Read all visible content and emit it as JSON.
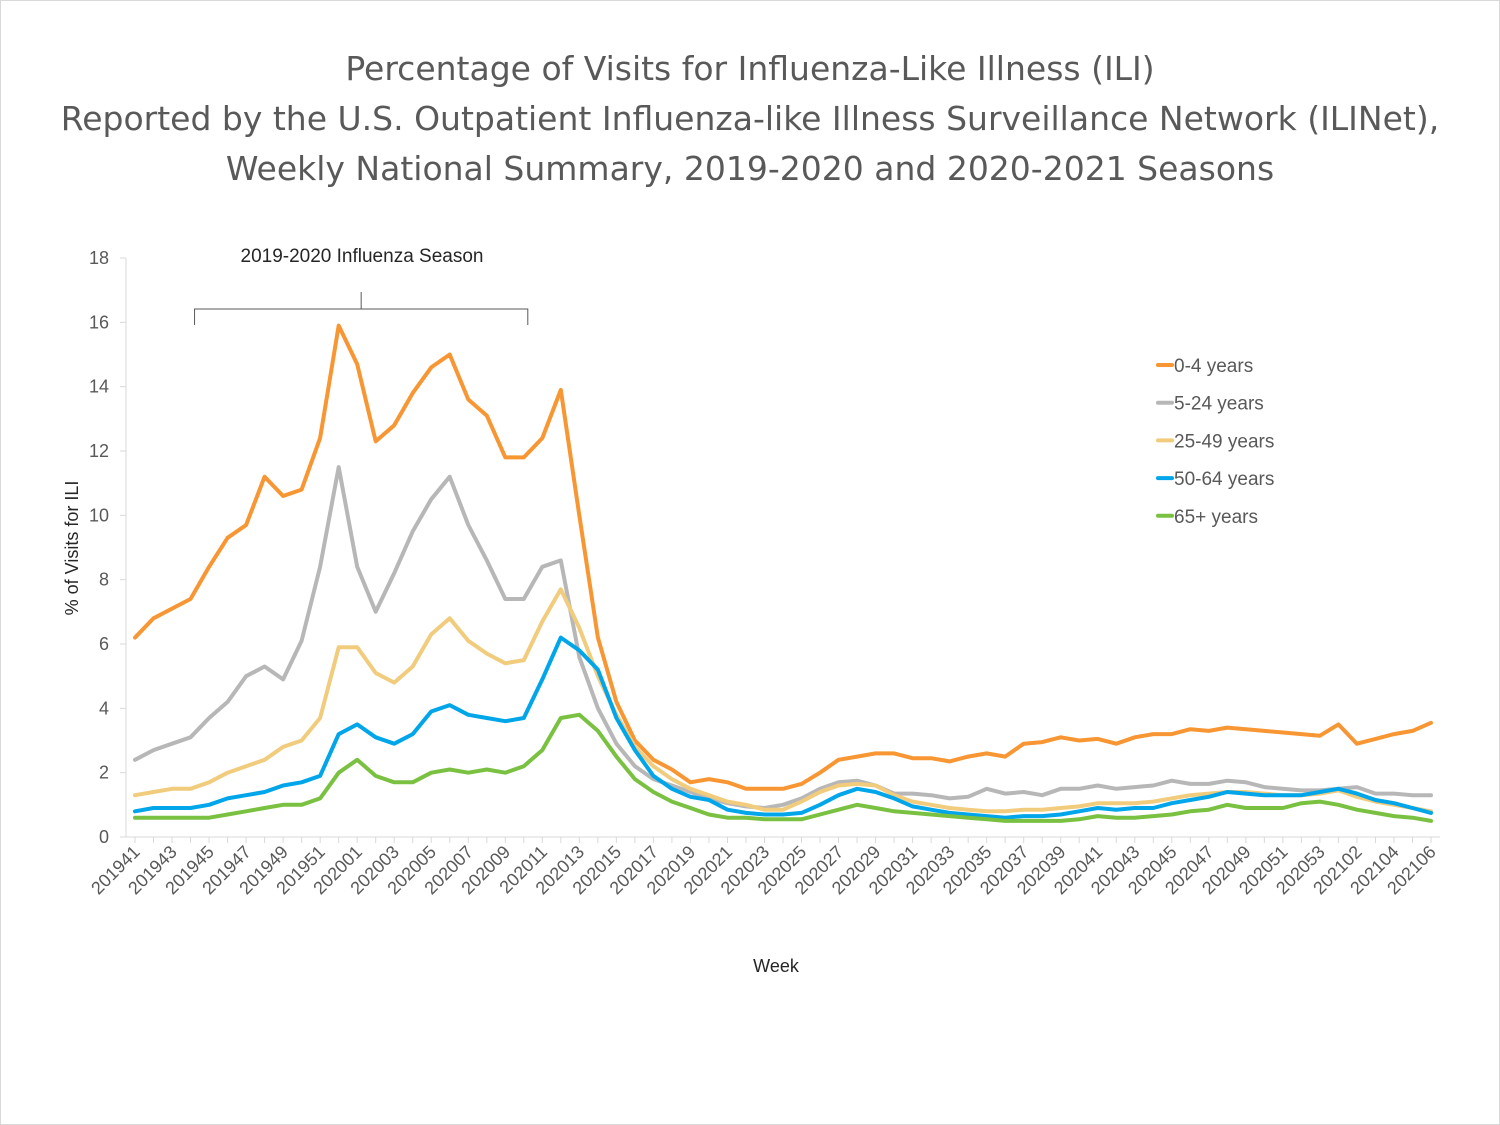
{
  "chart_data": {
    "type": "line",
    "title": [
      "Percentage of Visits for Influenza-Like Illness (ILI)",
      "Reported by the U.S. Outpatient Influenza-like Illness Surveillance Network (ILINet),",
      "Weekly National Summary, 2019-2020 and 2020-2021 Seasons"
    ],
    "xlabel": "Week",
    "ylabel": "% of Visits for ILI",
    "ylim": [
      0,
      18
    ],
    "yticks": [
      "0",
      "2",
      "4",
      "6",
      "8",
      "10",
      "12",
      "14",
      "16",
      "18"
    ],
    "x_tick_labels": [
      "201941",
      "201943",
      "201945",
      "201947",
      "201949",
      "201951",
      "202001",
      "202003",
      "202005",
      "202007",
      "202009",
      "202011",
      "202013",
      "202015",
      "202017",
      "202019",
      "202021",
      "202023",
      "202025",
      "202027",
      "202029",
      "202031",
      "202033",
      "202035",
      "202037",
      "202039",
      "202041",
      "202043",
      "202045",
      "202047",
      "202049",
      "202051",
      "202053",
      "202102",
      "202104",
      "202106"
    ],
    "x": [
      "201941",
      "201942",
      "201943",
      "201944",
      "201945",
      "201946",
      "201947",
      "201948",
      "201949",
      "201950",
      "201951",
      "201952",
      "202001",
      "202002",
      "202003",
      "202004",
      "202005",
      "202006",
      "202007",
      "202008",
      "202009",
      "202010",
      "202011",
      "202012",
      "202013",
      "202014",
      "202015",
      "202016",
      "202017",
      "202018",
      "202019",
      "202020",
      "202021",
      "202022",
      "202023",
      "202024",
      "202025",
      "202026",
      "202027",
      "202028",
      "202029",
      "202030",
      "202031",
      "202032",
      "202033",
      "202034",
      "202035",
      "202036",
      "202037",
      "202038",
      "202039",
      "202040",
      "202041",
      "202042",
      "202043",
      "202044",
      "202045",
      "202046",
      "202047",
      "202048",
      "202049",
      "202050",
      "202051",
      "202052",
      "202053",
      "202101",
      "202102",
      "202103",
      "202104",
      "202105",
      "202106"
    ],
    "annotation": "2019-2020 Influenza Season",
    "legend_position": "right",
    "series": [
      {
        "name": "0-4 years",
        "color": "#f79633",
        "values": [
          6.2,
          6.8,
          7.1,
          7.4,
          8.4,
          9.3,
          9.7,
          11.2,
          10.6,
          10.8,
          12.4,
          15.9,
          14.7,
          12.3,
          12.8,
          13.8,
          14.6,
          15.0,
          13.6,
          13.1,
          11.8,
          11.8,
          12.4,
          13.9,
          10.0,
          6.2,
          4.2,
          3.0,
          2.4,
          2.1,
          1.7,
          1.8,
          1.7,
          1.5,
          1.5,
          1.5,
          1.65,
          2.0,
          2.4,
          2.5,
          2.6,
          2.6,
          2.45,
          2.45,
          2.35,
          2.5,
          2.6,
          2.5,
          2.9,
          2.95,
          3.1,
          3.0,
          3.05,
          2.9,
          3.1,
          3.2,
          3.2,
          3.35,
          3.3,
          3.4,
          3.35,
          3.3,
          3.25,
          3.2,
          3.15,
          3.5,
          2.9,
          3.05,
          3.2,
          3.3,
          3.55
        ]
      },
      {
        "name": "5-24 years",
        "color": "#b7b7b7",
        "values": [
          2.4,
          2.7,
          2.9,
          3.1,
          3.7,
          4.2,
          5.0,
          5.3,
          4.9,
          6.1,
          8.4,
          11.5,
          8.4,
          7.0,
          8.2,
          9.5,
          10.5,
          11.2,
          9.7,
          8.6,
          7.4,
          7.4,
          8.4,
          8.6,
          5.6,
          4.0,
          2.9,
          2.2,
          1.8,
          1.6,
          1.4,
          1.2,
          1.05,
          0.95,
          0.9,
          1.0,
          1.2,
          1.5,
          1.7,
          1.75,
          1.6,
          1.35,
          1.35,
          1.3,
          1.2,
          1.25,
          1.5,
          1.35,
          1.4,
          1.3,
          1.5,
          1.5,
          1.6,
          1.5,
          1.55,
          1.6,
          1.75,
          1.65,
          1.65,
          1.75,
          1.7,
          1.55,
          1.5,
          1.45,
          1.45,
          1.5,
          1.55,
          1.35,
          1.35,
          1.3,
          1.3
        ]
      },
      {
        "name": "25-49 years",
        "color": "#f2cc7d",
        "values": [
          1.3,
          1.4,
          1.5,
          1.5,
          1.7,
          2.0,
          2.2,
          2.4,
          2.8,
          3.0,
          3.7,
          5.9,
          5.9,
          5.1,
          4.8,
          5.3,
          6.3,
          6.8,
          6.1,
          5.7,
          5.4,
          5.5,
          6.7,
          7.7,
          6.5,
          5.0,
          3.8,
          2.8,
          2.2,
          1.8,
          1.5,
          1.3,
          1.1,
          1.0,
          0.85,
          0.85,
          1.1,
          1.4,
          1.6,
          1.65,
          1.6,
          1.3,
          1.1,
          1.0,
          0.9,
          0.85,
          0.8,
          0.8,
          0.85,
          0.85,
          0.9,
          0.95,
          1.05,
          1.05,
          1.05,
          1.1,
          1.2,
          1.3,
          1.35,
          1.4,
          1.4,
          1.35,
          1.3,
          1.3,
          1.35,
          1.45,
          1.25,
          1.1,
          1.0,
          0.9,
          0.8
        ]
      },
      {
        "name": "50-64 years",
        "color": "#00a6e9",
        "values": [
          0.8,
          0.9,
          0.9,
          0.9,
          1.0,
          1.2,
          1.3,
          1.4,
          1.6,
          1.7,
          1.9,
          3.2,
          3.5,
          3.1,
          2.9,
          3.2,
          3.9,
          4.1,
          3.8,
          3.7,
          3.6,
          3.7,
          4.9,
          6.2,
          5.8,
          5.2,
          3.7,
          2.7,
          1.9,
          1.5,
          1.25,
          1.15,
          0.85,
          0.75,
          0.7,
          0.7,
          0.75,
          1.0,
          1.3,
          1.5,
          1.4,
          1.2,
          0.95,
          0.85,
          0.75,
          0.7,
          0.65,
          0.6,
          0.65,
          0.65,
          0.7,
          0.8,
          0.9,
          0.85,
          0.9,
          0.9,
          1.05,
          1.15,
          1.25,
          1.4,
          1.35,
          1.3,
          1.3,
          1.3,
          1.4,
          1.5,
          1.35,
          1.15,
          1.05,
          0.9,
          0.75
        ]
      },
      {
        "name": "65+ years",
        "color": "#7ac142",
        "values": [
          0.6,
          0.6,
          0.6,
          0.6,
          0.6,
          0.7,
          0.8,
          0.9,
          1.0,
          1.0,
          1.2,
          2.0,
          2.4,
          1.9,
          1.7,
          1.7,
          2.0,
          2.1,
          2.0,
          2.1,
          2.0,
          2.2,
          2.7,
          3.7,
          3.8,
          3.3,
          2.5,
          1.8,
          1.4,
          1.1,
          0.9,
          0.7,
          0.6,
          0.6,
          0.55,
          0.55,
          0.55,
          0.7,
          0.85,
          1.0,
          0.9,
          0.8,
          0.75,
          0.7,
          0.65,
          0.6,
          0.55,
          0.5,
          0.5,
          0.5,
          0.5,
          0.55,
          0.65,
          0.6,
          0.6,
          0.65,
          0.7,
          0.8,
          0.85,
          1.0,
          0.9,
          0.9,
          0.9,
          1.05,
          1.1,
          1.0,
          0.85,
          0.75,
          0.65,
          0.6,
          0.5
        ]
      }
    ]
  }
}
